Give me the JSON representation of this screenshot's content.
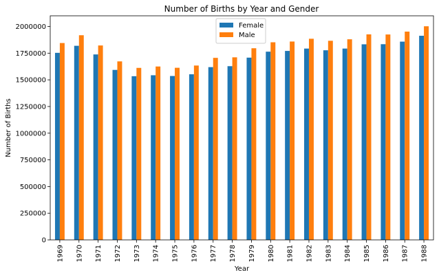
{
  "chart_data": {
    "type": "bar",
    "title": "Number of Births by Year and Gender",
    "xlabel": "Year",
    "ylabel": "Number of Births",
    "categories": [
      "1969",
      "1970",
      "1971",
      "1972",
      "1973",
      "1974",
      "1975",
      "1976",
      "1977",
      "1978",
      "1979",
      "1980",
      "1981",
      "1982",
      "1983",
      "1984",
      "1985",
      "1986",
      "1987",
      "1988"
    ],
    "series": [
      {
        "name": "Female",
        "color": "#1f77b4",
        "values": [
          1753000,
          1819000,
          1738000,
          1593000,
          1534000,
          1543000,
          1536000,
          1552000,
          1619000,
          1628000,
          1708000,
          1764000,
          1771000,
          1793000,
          1777000,
          1793000,
          1833000,
          1834000,
          1858000,
          1913000
        ]
      },
      {
        "name": "Male",
        "color": "#ff7f0e",
        "values": [
          1845000,
          1918000,
          1822000,
          1673000,
          1612000,
          1625000,
          1613000,
          1634000,
          1706000,
          1711000,
          1796000,
          1852000,
          1859000,
          1885000,
          1866000,
          1880000,
          1926000,
          1925000,
          1952000,
          2002000
        ]
      }
    ],
    "ylim": [
      0,
      2100000
    ],
    "yticks": [
      "0",
      "250000",
      "500000",
      "750000",
      "1000000",
      "1250000",
      "1500000",
      "1750000",
      "2000000"
    ],
    "legend_position": "top-center",
    "grid": false
  }
}
